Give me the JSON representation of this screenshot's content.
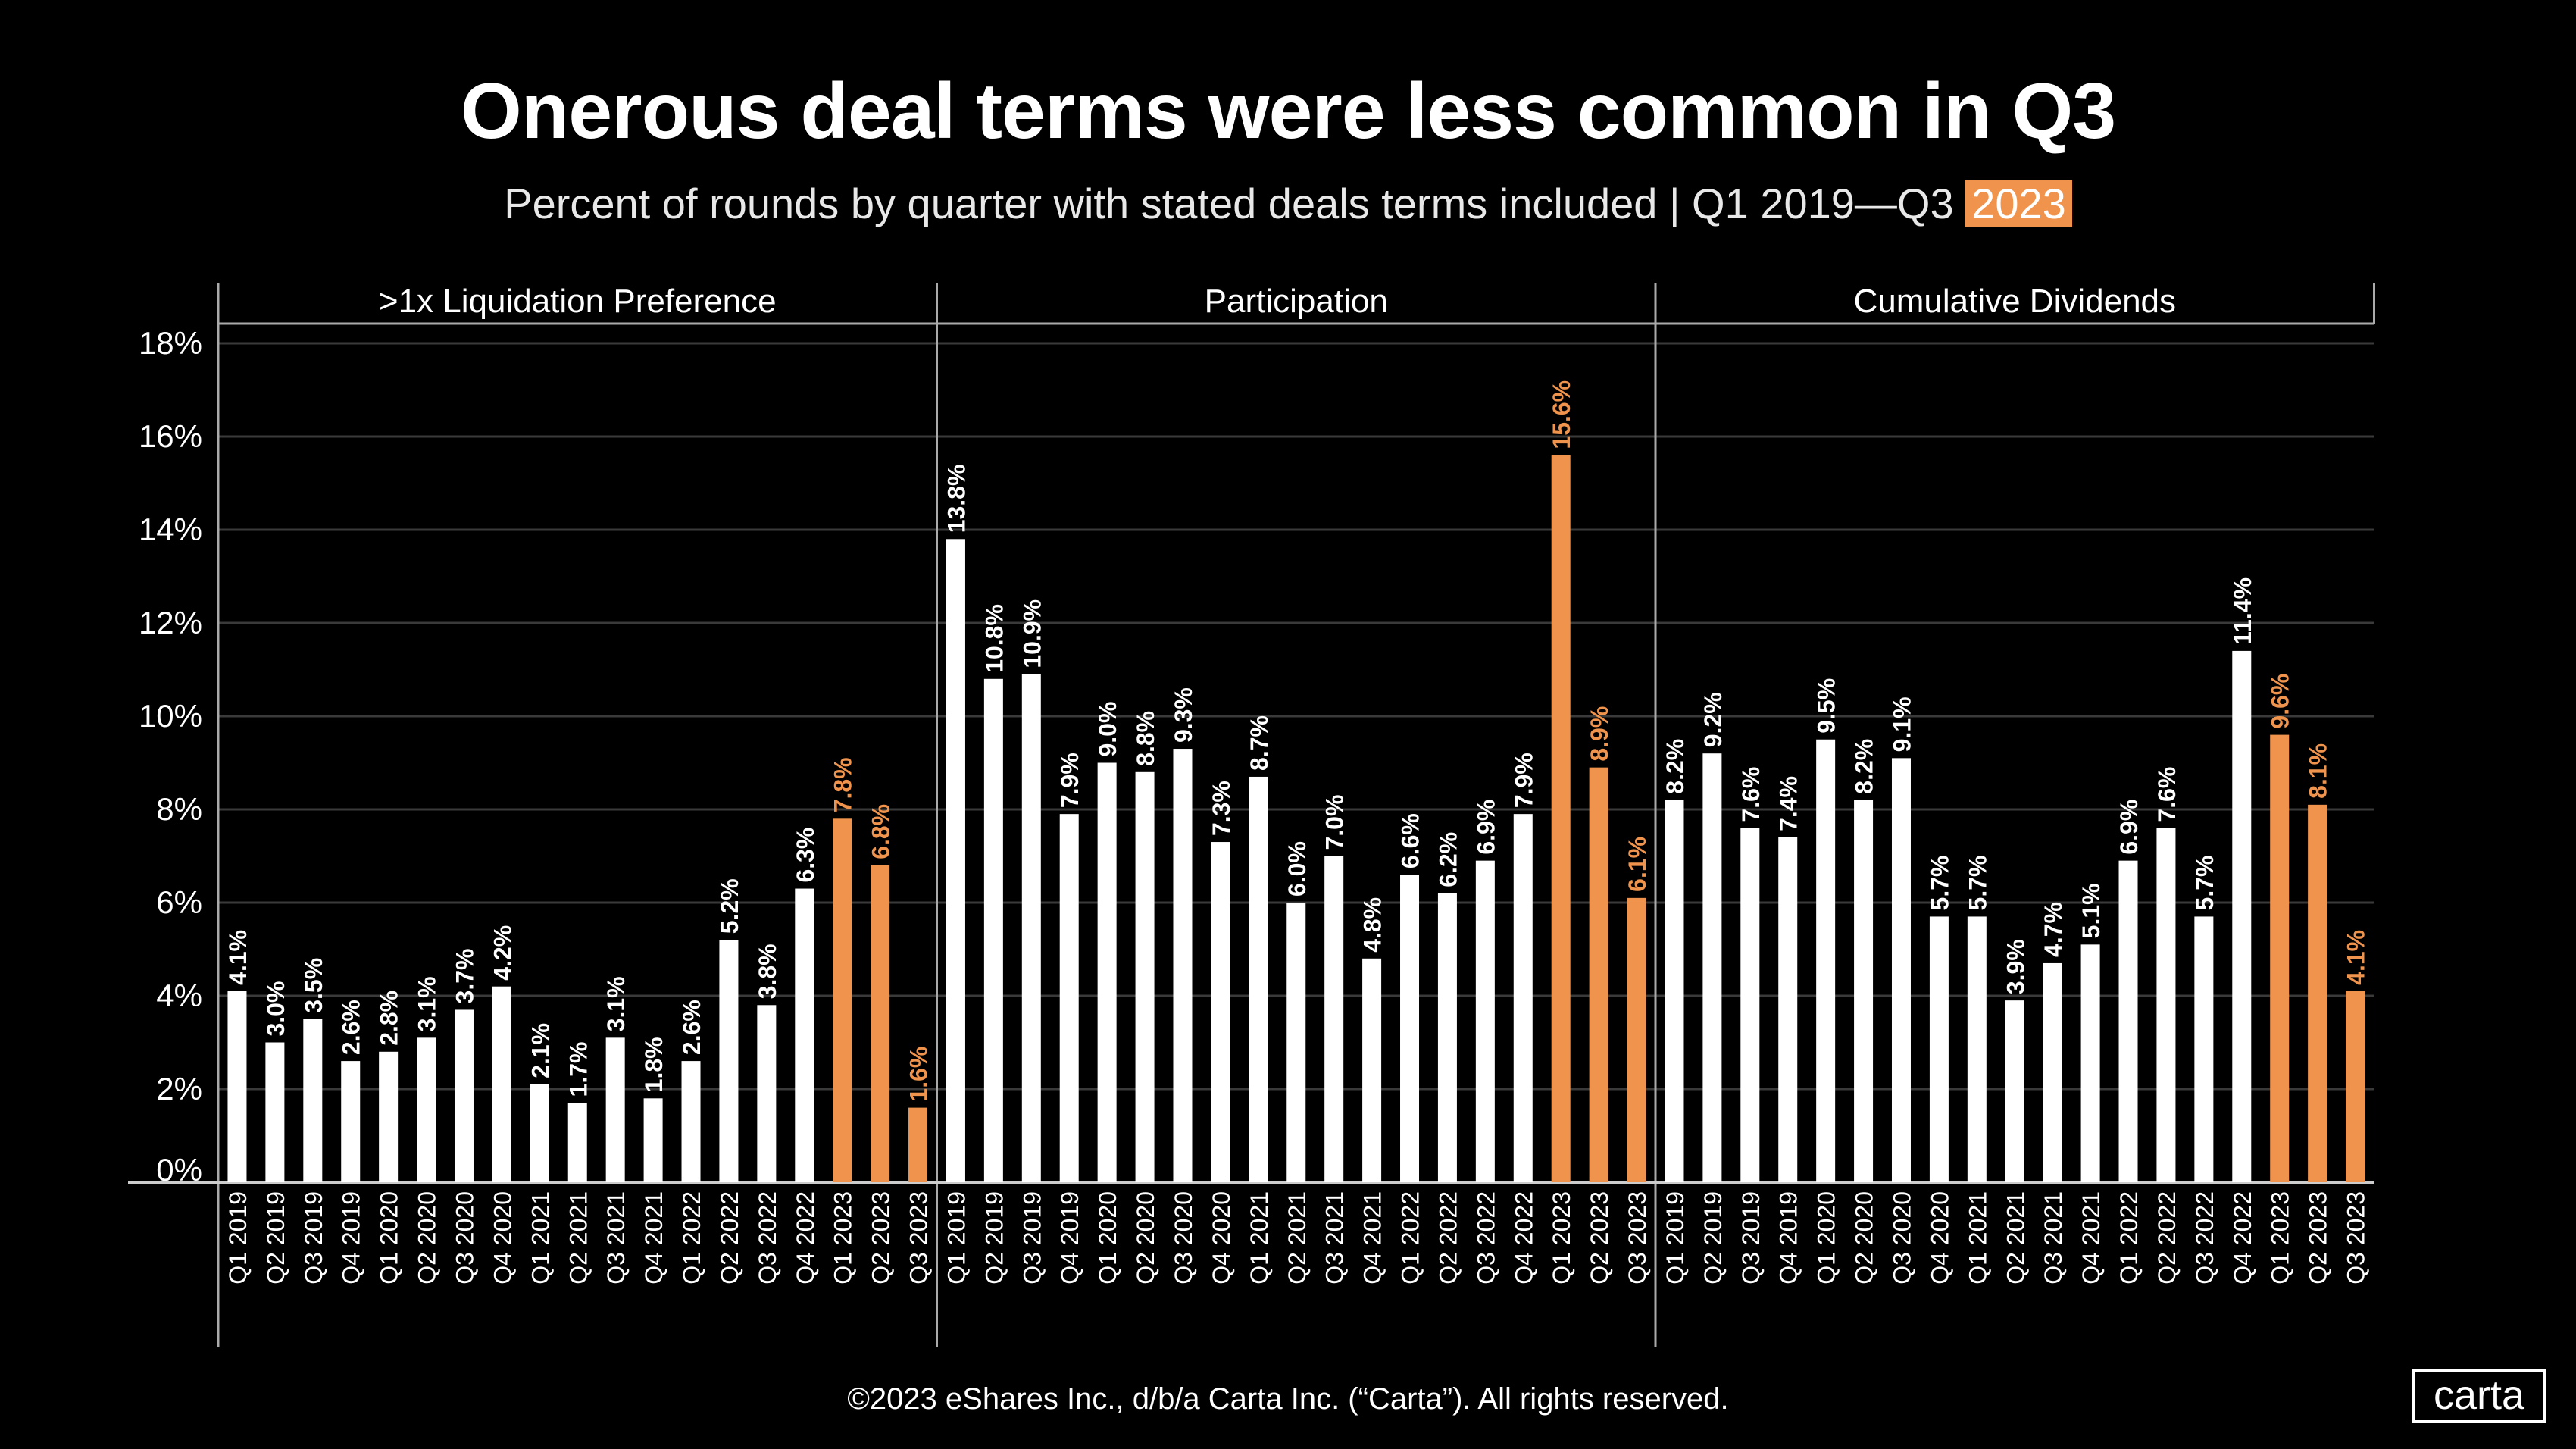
{
  "title": "Onerous deal terms were less common in Q3",
  "subtitle": {
    "text": "Percent of rounds by quarter with stated deals terms included | Q1 2019—Q3 ",
    "highlight": "2023"
  },
  "footer": "©2023 eShares Inc., d/b/a Carta Inc. (“Carta”). All rights reserved.",
  "logo": "carta",
  "colors": {
    "default_bar": "#FFFFFF",
    "highlight_bar": "#F0944D",
    "background": "#000000"
  },
  "chart_data": {
    "type": "bar",
    "ylim": [
      0,
      18
    ],
    "yticks": [
      "0%",
      "2%",
      "4%",
      "6%",
      "8%",
      "10%",
      "12%",
      "14%",
      "16%",
      "18%"
    ],
    "grid": true,
    "categories": [
      "Q1 2019",
      "Q2 2019",
      "Q3 2019",
      "Q4 2019",
      "Q1 2020",
      "Q2 2020",
      "Q3 2020",
      "Q4 2020",
      "Q1 2021",
      "Q2 2021",
      "Q3 2021",
      "Q4 2021",
      "Q1 2022",
      "Q2 2022",
      "Q3 2022",
      "Q4 2022",
      "Q1 2023",
      "Q2 2023",
      "Q3 2023"
    ],
    "highlighted_categories": [
      "Q1 2023",
      "Q2 2023",
      "Q3 2023"
    ],
    "panels": [
      {
        "name": ">1x Liquidation Preference",
        "values": [
          4.1,
          3.0,
          3.5,
          2.6,
          2.8,
          3.1,
          3.7,
          4.2,
          2.1,
          1.7,
          3.1,
          1.8,
          2.6,
          5.2,
          3.8,
          6.3,
          7.8,
          6.8,
          1.6
        ]
      },
      {
        "name": "Participation",
        "values": [
          13.8,
          10.8,
          10.9,
          7.9,
          9.0,
          8.8,
          9.3,
          7.3,
          8.7,
          6.0,
          7.0,
          4.8,
          6.6,
          6.2,
          6.9,
          7.9,
          15.6,
          8.9,
          6.1
        ]
      },
      {
        "name": "Cumulative Dividends",
        "values": [
          8.2,
          9.2,
          7.6,
          7.4,
          9.5,
          8.2,
          9.1,
          5.7,
          5.7,
          3.9,
          4.7,
          5.1,
          6.9,
          7.6,
          5.7,
          11.4,
          9.6,
          8.1,
          4.1
        ]
      }
    ]
  }
}
